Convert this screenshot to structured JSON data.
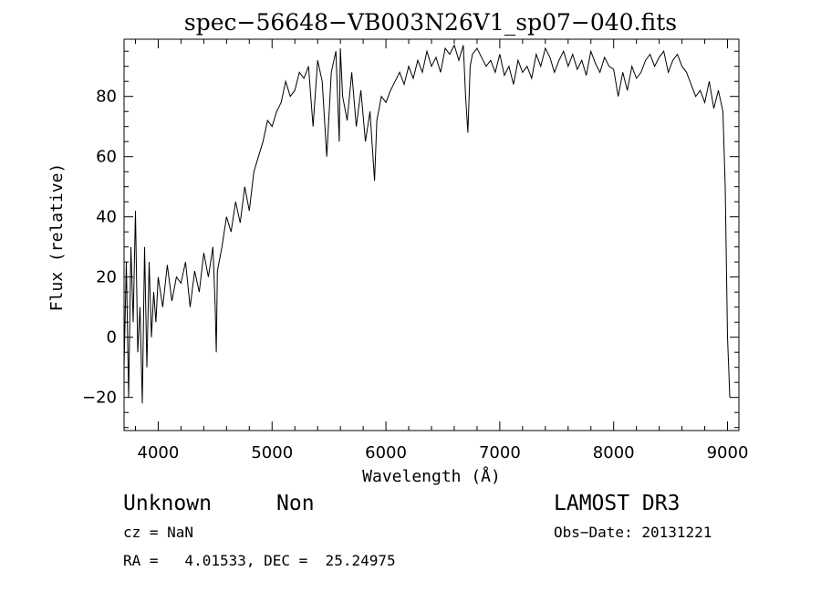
{
  "chart_data": {
    "type": "line",
    "title": "spec−56648−VB003N26V1_sp07−040.fits",
    "xlabel": "Wavelength (Å)",
    "ylabel": "Flux (relative)",
    "xlim": [
      3700,
      9100
    ],
    "ylim": [
      -31,
      99
    ],
    "xticks": [
      4000,
      5000,
      6000,
      7000,
      8000,
      9000
    ],
    "yticks": [
      -20,
      0,
      20,
      40,
      60,
      80
    ],
    "grid": false,
    "series": [
      {
        "x": [
          3700,
          3720,
          3740,
          3760,
          3780,
          3800,
          3820,
          3840,
          3860,
          3880,
          3900,
          3920,
          3940,
          3960,
          3980,
          4000,
          4040,
          4080,
          4120,
          4160,
          4200,
          4240,
          4280,
          4320,
          4360,
          4400,
          4440,
          4480,
          4500,
          4510,
          4520,
          4560,
          4600,
          4640,
          4680,
          4720,
          4760,
          4800,
          4840,
          4880,
          4920,
          4960,
          5000,
          5040,
          5080,
          5120,
          5160,
          5200,
          5240,
          5280,
          5320,
          5360,
          5400,
          5440,
          5480,
          5520,
          5560,
          5590,
          5600,
          5620,
          5660,
          5700,
          5740,
          5780,
          5820,
          5860,
          5900,
          5920,
          5960,
          6000,
          6040,
          6080,
          6120,
          6160,
          6200,
          6240,
          6280,
          6320,
          6360,
          6400,
          6440,
          6480,
          6520,
          6560,
          6600,
          6640,
          6680,
          6700,
          6720,
          6740,
          6760,
          6800,
          6840,
          6880,
          6920,
          6960,
          7000,
          7040,
          7080,
          7120,
          7160,
          7200,
          7240,
          7280,
          7320,
          7360,
          7400,
          7440,
          7480,
          7520,
          7560,
          7600,
          7640,
          7680,
          7720,
          7760,
          7800,
          7840,
          7880,
          7920,
          7960,
          8000,
          8040,
          8080,
          8120,
          8160,
          8200,
          8240,
          8280,
          8320,
          8360,
          8400,
          8440,
          8480,
          8520,
          8560,
          8600,
          8640,
          8680,
          8720,
          8760,
          8800,
          8840,
          8880,
          8920,
          8960,
          8980,
          9000,
          9010,
          9020
        ],
        "y": [
          -10,
          25,
          -20,
          30,
          5,
          42,
          -5,
          10,
          -22,
          30,
          -10,
          25,
          0,
          15,
          5,
          20,
          10,
          24,
          12,
          20,
          18,
          25,
          10,
          22,
          15,
          28,
          20,
          30,
          10,
          -5,
          22,
          30,
          40,
          35,
          45,
          38,
          50,
          42,
          55,
          60,
          65,
          72,
          70,
          75,
          78,
          85,
          80,
          82,
          88,
          86,
          90,
          70,
          92,
          85,
          60,
          88,
          95,
          65,
          96,
          80,
          72,
          88,
          70,
          82,
          65,
          75,
          52,
          72,
          80,
          78,
          82,
          85,
          88,
          84,
          90,
          86,
          92,
          88,
          95,
          90,
          93,
          88,
          96,
          94,
          97,
          92,
          97,
          80,
          68,
          90,
          94,
          96,
          93,
          90,
          92,
          88,
          94,
          87,
          90,
          84,
          92,
          88,
          90,
          86,
          94,
          90,
          96,
          93,
          88,
          92,
          95,
          90,
          94,
          89,
          92,
          87,
          95,
          91,
          88,
          93,
          90,
          89,
          80,
          88,
          82,
          90,
          86,
          88,
          92,
          94,
          90,
          93,
          95,
          88,
          92,
          94,
          90,
          88,
          84,
          80,
          82,
          78,
          85,
          76,
          82,
          75,
          50,
          0,
          -10,
          -20
        ]
      }
    ]
  },
  "footer": {
    "object_class": "Unknown",
    "subclass": "Non",
    "survey": "LAMOST DR3",
    "cz": "cz = NaN",
    "obs_date": "Obs−Date: 20131221",
    "coords": "RA =   4.01533, DEC =  25.24975"
  }
}
